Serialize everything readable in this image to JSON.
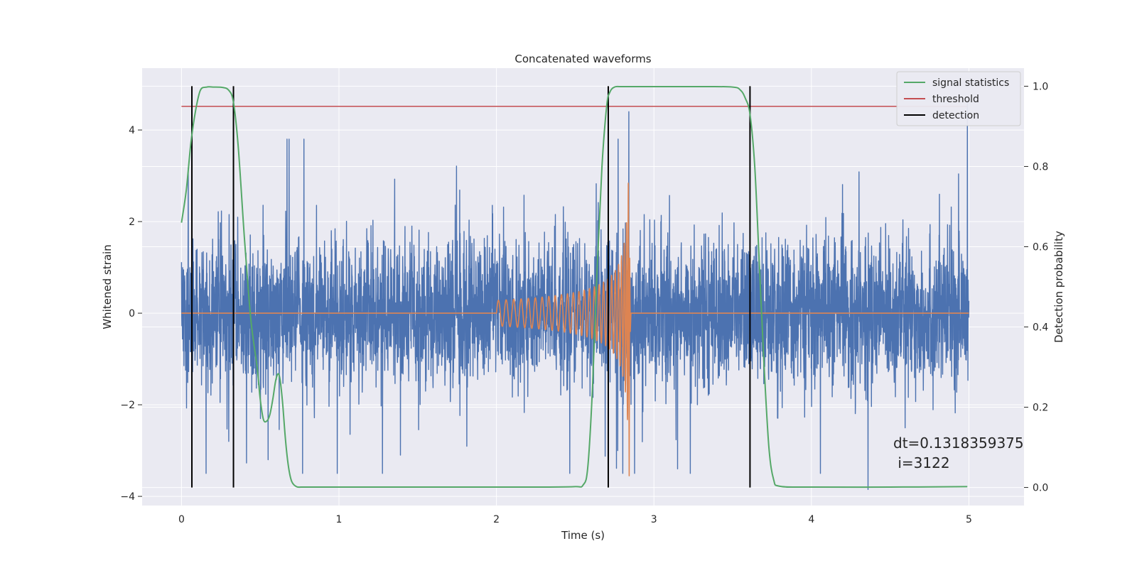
{
  "chart_data": {
    "type": "line",
    "title": "Concatenated waveforms",
    "xlabel": "Time (s)",
    "ylabel_left": "Whitened strain",
    "ylabel_right": "Detection probability",
    "xlim": [
      -0.25,
      5.35
    ],
    "ylim_left": [
      -4.2,
      5.35
    ],
    "ylim_right": [
      -0.045,
      1.045
    ],
    "x_ticks": [
      0,
      1,
      2,
      3,
      4,
      5
    ],
    "y_left_ticks": [
      -4,
      -2,
      0,
      2,
      4
    ],
    "y_right_ticks": [
      0.0,
      0.2,
      0.4,
      0.6,
      0.8,
      1.0
    ],
    "grid": true,
    "legend_position": "top-right",
    "colors": {
      "noise": "#4c72b0",
      "waveform": "#dd8452",
      "signal_statistics": "#55a868",
      "threshold": "#c44e52",
      "detection": "#000000",
      "background": "#eaeaf2",
      "grid": "#ffffff"
    },
    "series": [
      {
        "name": "signal statistics",
        "axis": "right",
        "x": [
          0.0,
          0.03,
          0.06,
          0.09,
          0.12,
          0.16,
          0.2,
          0.26,
          0.3,
          0.33,
          0.36,
          0.4,
          0.44,
          0.48,
          0.5,
          0.52,
          0.54,
          0.56,
          0.58,
          0.6,
          0.62,
          0.64,
          0.66,
          0.68,
          0.7,
          0.73,
          0.76,
          0.8,
          1.0,
          1.5,
          2.0,
          2.3,
          2.5,
          2.55,
          2.58,
          2.61,
          2.64,
          2.67,
          2.7,
          2.72,
          2.75,
          2.8,
          3.0,
          3.3,
          3.5,
          3.55,
          3.58,
          3.61,
          3.64,
          3.67,
          3.7,
          3.73,
          3.76,
          3.8,
          4.0,
          4.5,
          4.99
        ],
        "y": [
          0.66,
          0.74,
          0.86,
          0.94,
          0.99,
          0.998,
          0.998,
          0.997,
          0.99,
          0.96,
          0.85,
          0.62,
          0.42,
          0.3,
          0.22,
          0.17,
          0.165,
          0.18,
          0.22,
          0.27,
          0.28,
          0.22,
          0.12,
          0.05,
          0.015,
          0.002,
          0.001,
          0.001,
          0.001,
          0.001,
          0.001,
          0.001,
          0.002,
          0.006,
          0.05,
          0.25,
          0.55,
          0.8,
          0.95,
          0.985,
          0.998,
          0.999,
          0.999,
          0.999,
          0.998,
          0.99,
          0.97,
          0.93,
          0.8,
          0.55,
          0.3,
          0.1,
          0.02,
          0.003,
          0.001,
          0.001,
          0.002
        ]
      },
      {
        "name": "threshold",
        "axis": "right",
        "x": [
          0.0,
          4.99
        ],
        "y": [
          0.95,
          0.95
        ]
      },
      {
        "name": "detection",
        "axis": "right",
        "x": [
          0.066,
          0.33,
          2.71,
          3.61
        ],
        "y_range": [
          0.0,
          1.0
        ]
      }
    ],
    "waveform": {
      "axis": "left",
      "start": 2.0,
      "merger": 2.84,
      "end": 2.85,
      "amplitude_start": 0.28,
      "amplitude_peak": 3.3,
      "min_value": -3.55
    },
    "noise": {
      "axis": "left",
      "x_range": [
        0.0,
        5.0
      ],
      "typical_range": [
        -1.6,
        1.6
      ],
      "max": 4.6,
      "min": -3.85
    },
    "legend": [
      "signal statistics",
      "threshold",
      "detection"
    ],
    "annotation": {
      "line1": "dt=0.1318359375",
      "line2": " i=3122"
    }
  }
}
